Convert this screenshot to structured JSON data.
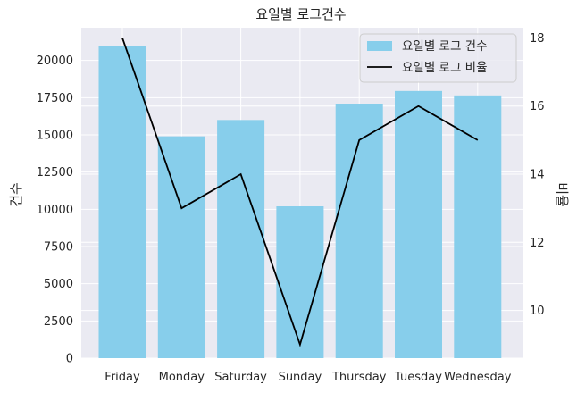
{
  "chart_data": {
    "type": "bar",
    "title": "요일별 로그건수",
    "xlabel": "",
    "ylabel": "건수",
    "ylabel_right": "비율",
    "categories": [
      "Friday",
      "Monday",
      "Saturday",
      "Sunday",
      "Thursday",
      "Tuesday",
      "Wednesday"
    ],
    "series": [
      {
        "name": "요일별 로그 건수",
        "type": "bar",
        "axis": "left",
        "color": "#87ceeb",
        "values": [
          21000,
          14900,
          16000,
          10200,
          17100,
          17950,
          17650
        ]
      },
      {
        "name": "요일별 로그 비율",
        "type": "line",
        "axis": "right",
        "color": "#000000",
        "values": [
          18.0,
          13.0,
          14.0,
          9.0,
          15.0,
          16.0,
          15.0
        ]
      }
    ],
    "ylim": [
      0,
      22200
    ],
    "ylim_right": [
      8.6,
      18.3
    ],
    "yticks": [
      0,
      2500,
      5000,
      7500,
      10000,
      12500,
      15000,
      17500,
      20000
    ],
    "yticks_right": [
      10,
      12,
      14,
      16,
      18
    ],
    "grid": true,
    "legend_position": "top-right"
  }
}
